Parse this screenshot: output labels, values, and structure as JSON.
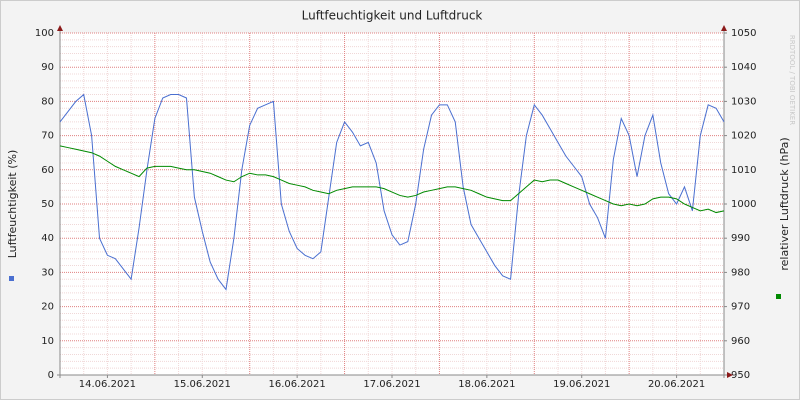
{
  "chart_data": {
    "type": "line",
    "title": "Luftfeuchtigkeit und Luftdruck",
    "ylabel": "Luftfeuchtigkeit (%)",
    "y2label": "relativer Luftdruck (hPa)",
    "watermark": "RRDTOOL / TOBI OETIKER",
    "categories": [
      null,
      null,
      null,
      null,
      null,
      null,
      "14.06.2021",
      null,
      null,
      null,
      null,
      null,
      null,
      null,
      null,
      null,
      null,
      null,
      "15.06.2021",
      null,
      null,
      null,
      null,
      null,
      null,
      null,
      null,
      null,
      null,
      null,
      "16.06.2021",
      null,
      null,
      null,
      null,
      null,
      null,
      null,
      null,
      null,
      null,
      null,
      "17.06.2021",
      null,
      null,
      null,
      null,
      null,
      null,
      null,
      null,
      null,
      null,
      null,
      "18.06.2021",
      null,
      null,
      null,
      null,
      null,
      null,
      null,
      null,
      null,
      null,
      null,
      "19.06.2021",
      null,
      null,
      null,
      null,
      null,
      null,
      null,
      null,
      null,
      null,
      null,
      "20.06.2021",
      null,
      null,
      null,
      null,
      null,
      null
    ],
    "series": [
      {
        "color": "#4a6fd0",
        "values": [
          74,
          77,
          80,
          82,
          70,
          40,
          35,
          34,
          31,
          28,
          43,
          60,
          75,
          81,
          82,
          82,
          81,
          52,
          42,
          33,
          28,
          25,
          40,
          60,
          73,
          78,
          79,
          80,
          50,
          42,
          37,
          35,
          34,
          36,
          52,
          68,
          74,
          71,
          67,
          68,
          62,
          48,
          41,
          38,
          39,
          50,
          66,
          76,
          79,
          79,
          74,
          55,
          44,
          40,
          36,
          32,
          29,
          28,
          52,
          70,
          79,
          76,
          72,
          68,
          64,
          61,
          58,
          50,
          46,
          40,
          63,
          75,
          70,
          58,
          70,
          76,
          62,
          53,
          50,
          55,
          48,
          70,
          79,
          78,
          74
        ]
      },
      {
        "color": "#008a00",
        "axis": "y2",
        "values": [
          1017,
          1016.5,
          1016,
          1015.5,
          1015,
          1014,
          1012.5,
          1011,
          1010,
          1009,
          1008,
          1010.5,
          1011,
          1011,
          1011,
          1010.5,
          1010,
          1010,
          1009.5,
          1009,
          1008,
          1007,
          1006.5,
          1008,
          1009,
          1008.5,
          1008.5,
          1008,
          1007,
          1006,
          1005.5,
          1005,
          1004,
          1003.5,
          1003,
          1004,
          1004.5,
          1005,
          1005,
          1005,
          1005,
          1004.5,
          1003.5,
          1002.5,
          1002,
          1002.5,
          1003.5,
          1004,
          1004.5,
          1005,
          1005,
          1004.5,
          1004,
          1003,
          1002,
          1001.5,
          1001,
          1001,
          1003,
          1005,
          1007,
          1006.5,
          1007,
          1007,
          1006,
          1005,
          1004,
          1003,
          1002,
          1001,
          1000,
          999.5,
          1000,
          999.5,
          1000,
          1001.5,
          1002,
          1002,
          1001.5,
          1000,
          999,
          998,
          998.5,
          997.5,
          998
        ]
      }
    ],
    "ylim": [
      0,
      100
    ],
    "yticks": [
      0,
      10,
      20,
      30,
      40,
      50,
      60,
      70,
      80,
      90,
      100
    ],
    "y2lim": [
      950,
      1050
    ],
    "y2ticks": [
      950,
      960,
      970,
      980,
      990,
      1000,
      1010,
      1020,
      1030,
      1040,
      1050
    ],
    "grid": true
  }
}
